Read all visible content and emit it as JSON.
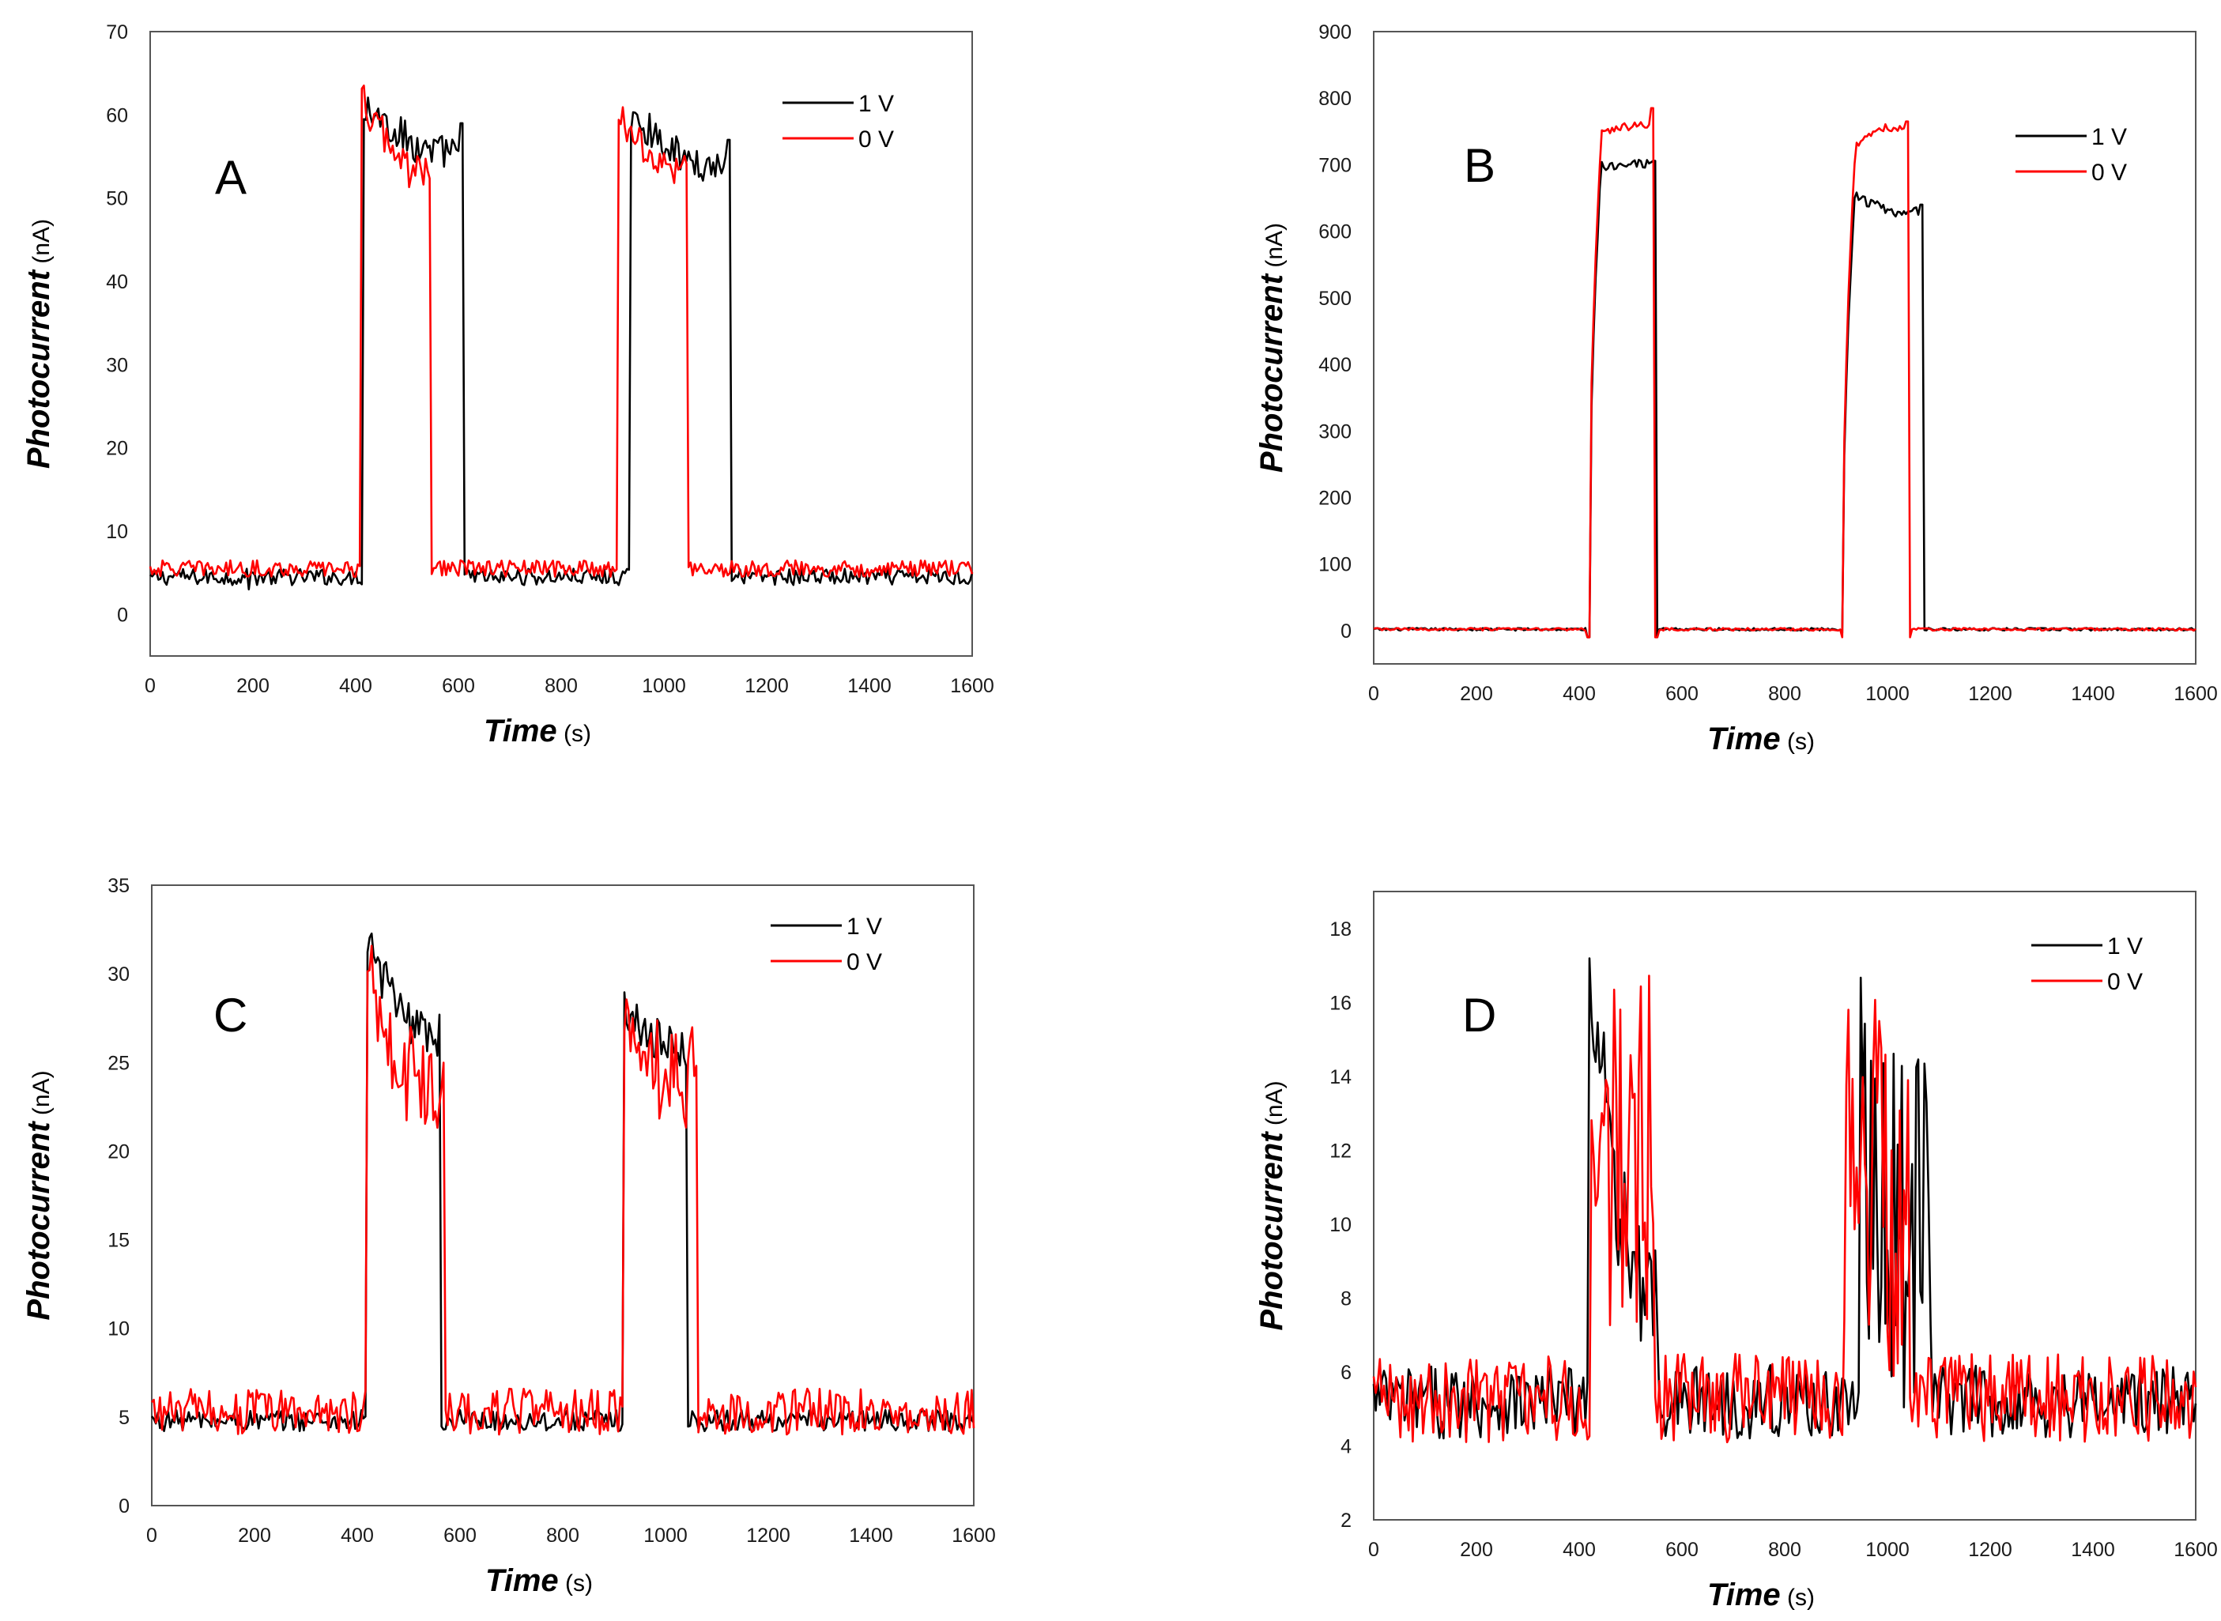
{
  "chart_data": [
    {
      "type": "line",
      "panel_label": "A",
      "xlabel": "Time",
      "xunit": "(s)",
      "ylabel": "Photocurrent",
      "yunit": "(nA)",
      "xlim": [
        0,
        1600
      ],
      "ylim": [
        -5,
        70
      ],
      "xticks": [
        0,
        200,
        400,
        600,
        800,
        1000,
        1200,
        1400,
        1600
      ],
      "yticks": [
        0,
        10,
        20,
        30,
        40,
        50,
        60,
        70
      ],
      "legend": [
        "1 V",
        "0 V"
      ],
      "legend_position": "top-right",
      "series": [
        {
          "name": "1 V",
          "color": "#000000",
          "baseline": 4.5,
          "noise": 1.0,
          "spike_every": 12,
          "spike_low": 3,
          "pulses": [
            {
              "on": 415,
              "off": 610,
              "start": 61,
              "level": 55.5,
              "noise": 2.2,
              "tail_spike": 59
            },
            {
              "on": 935,
              "off": 1128,
              "start": 60,
              "level": 54,
              "noise": 2.0,
              "tail_spike": 57
            }
          ]
        },
        {
          "name": "0 V",
          "color": "#ff0000",
          "baseline": 5.5,
          "noise": 1.0,
          "pulses": [
            {
              "on": 410,
              "off": 545,
              "start": 62,
              "level": 53.5,
              "noise": 2.2
            },
            {
              "on": 910,
              "off": 1045,
              "start": 60,
              "level": 53.5,
              "noise": 2.0
            }
          ]
        }
      ]
    },
    {
      "type": "line",
      "panel_label": "B",
      "xlabel": "Time",
      "xunit": "(s)",
      "ylabel": "Photocurrent",
      "yunit": "(nA)",
      "xlim": [
        0,
        1600
      ],
      "ylim": [
        -50,
        900
      ],
      "xticks": [
        0,
        200,
        400,
        600,
        800,
        1000,
        1200,
        1400,
        1600
      ],
      "yticks": [
        0,
        100,
        200,
        300,
        400,
        500,
        600,
        700,
        800,
        900
      ],
      "legend": [
        "1 V",
        "0 V"
      ],
      "legend_position": "top-right",
      "series": [
        {
          "name": "1 V",
          "color": "#000000",
          "baseline": 2,
          "noise": 2,
          "pulses": [
            {
              "on": 418,
              "off": 548,
              "start": 700,
              "level": 700,
              "noise": 8,
              "rise": 25,
              "undershoot": -10
            },
            {
              "on": 912,
              "off": 1068,
              "start": 660,
              "level": 630,
              "noise": 8,
              "rise": 25,
              "tail_spike": 640
            }
          ]
        },
        {
          "name": "0 V",
          "color": "#ff0000",
          "baseline": 2,
          "noise": 2,
          "pulses": [
            {
              "on": 418,
              "off": 545,
              "start": 745,
              "level": 758,
              "noise": 6,
              "rise": 25,
              "tail_spike": 785,
              "undershoot": -10
            },
            {
              "on": 912,
              "off": 1040,
              "start": 720,
              "level": 755,
              "noise": 6,
              "rise": 25,
              "tail_spike": 765,
              "undershoot": -10
            }
          ]
        }
      ]
    },
    {
      "type": "line",
      "panel_label": "C",
      "xlabel": "Time",
      "xunit": "(s)",
      "ylabel": "Photocurrent",
      "yunit": "(nA)",
      "xlim": [
        0,
        1600
      ],
      "ylim": [
        0,
        35
      ],
      "xticks": [
        0,
        200,
        400,
        600,
        800,
        1000,
        1200,
        1400,
        1600
      ],
      "yticks": [
        0,
        5,
        10,
        15,
        20,
        25,
        30,
        35
      ],
      "legend": [
        "1 V",
        "0 V"
      ],
      "legend_position": "top-right",
      "series": [
        {
          "name": "1 V",
          "color": "#000000",
          "baseline": 4.8,
          "noise": 0.6,
          "pulses": [
            {
              "on": 420,
              "off": 560,
              "start": 31.5,
              "level": 26.5,
              "noise": 1.5
            },
            {
              "on": 918,
              "off": 1040,
              "start": 28,
              "level": 26,
              "noise": 1.2
            }
          ]
        },
        {
          "name": "0 V",
          "color": "#ff0000",
          "baseline": 5.3,
          "noise": 1.3,
          "pulses": [
            {
              "on": 420,
              "off": 570,
              "start": 29.5,
              "level": 23.5,
              "noise": 3.0
            },
            {
              "on": 918,
              "off": 1060,
              "start": 26,
              "level": 24,
              "noise": 3.0
            }
          ]
        }
      ]
    },
    {
      "type": "line",
      "panel_label": "D",
      "xlabel": "Time",
      "xunit": "(s)",
      "ylabel": "Photocurrent",
      "yunit": "(nA)",
      "xlim": [
        0,
        1600
      ],
      "ylim": [
        2,
        19
      ],
      "xticks": [
        0,
        200,
        400,
        600,
        800,
        1000,
        1200,
        1400,
        1600
      ],
      "yticks": [
        2,
        4,
        6,
        8,
        10,
        12,
        14,
        16,
        18
      ],
      "legend": [
        "1 V",
        "0 V"
      ],
      "legend_position": "top-right",
      "series": [
        {
          "name": "1 V",
          "color": "#000000",
          "baseline": 5.2,
          "noise": 1.0,
          "pulses": [
            {
              "on": 418,
              "off": 555,
              "start": 16.5,
              "level": 8.0,
              "noise": 2.0
            },
            {
              "on": 945,
              "off": 1085,
              "start": 12,
              "level": 10,
              "noise": 5.0
            }
          ]
        },
        {
          "name": "0 V",
          "color": "#ff0000",
          "baseline": 5.3,
          "noise": 1.2,
          "pulses": [
            {
              "on": 422,
              "off": 545,
              "start": 12,
              "level": 12,
              "noise": 5.0
            },
            {
              "on": 915,
              "off": 1040,
              "start": 11,
              "level": 11,
              "noise": 5.5
            }
          ]
        }
      ]
    }
  ]
}
